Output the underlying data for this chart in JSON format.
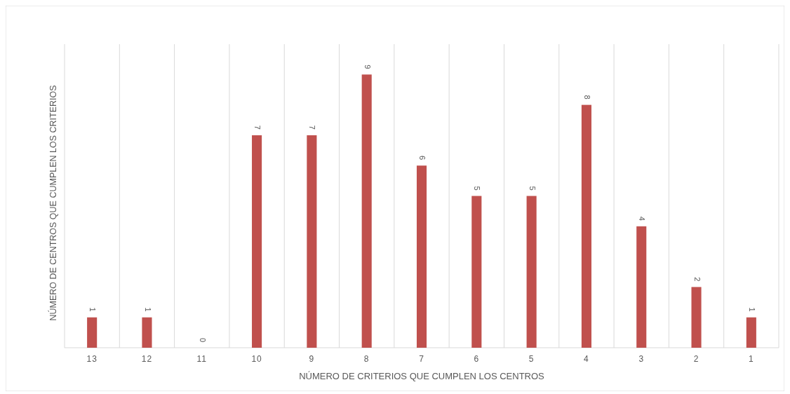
{
  "chart_data": {
    "type": "bar",
    "xlabel": "NÚMERO DE CRITERIOS QUE CUMPLEN LOS CENTROS",
    "ylabel": "NÚMERO DE CENTROS QUE CUMPLEN LOS CRITERIOS",
    "categories": [
      "13",
      "12",
      "11",
      "10",
      "9",
      "8",
      "7",
      "6",
      "5",
      "4",
      "3",
      "2",
      "1"
    ],
    "values": [
      1,
      1,
      0,
      7,
      7,
      9,
      6,
      5,
      5,
      8,
      4,
      2,
      1
    ],
    "color": "#c0504d",
    "data_labels": true,
    "grid": "x",
    "tick_labels": "x"
  }
}
